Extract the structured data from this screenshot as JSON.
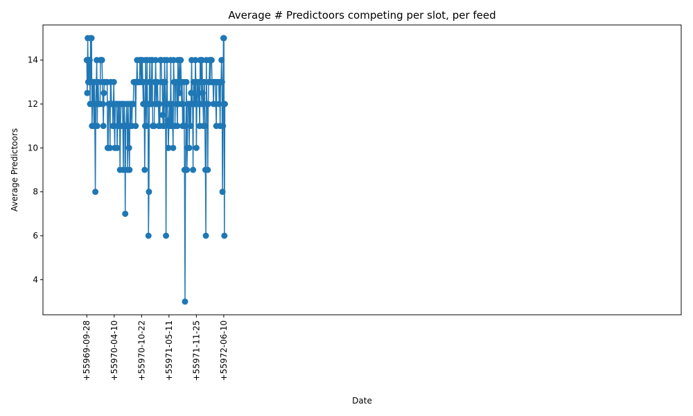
{
  "chart_data": {
    "type": "line",
    "title": "Average # Predictoors competing per slot, per feed",
    "xlabel": "Date",
    "ylabel": "Average Predictoors",
    "x_ticks": [
      "+55969-09-28",
      "+55970-04-10",
      "+55970-10-22",
      "+55971-05-11",
      "+55971-11-25",
      "+55972-06-10"
    ],
    "y_ticks": [
      4,
      6,
      8,
      10,
      12,
      14
    ],
    "xlim": [
      -1.6,
      21.7
    ],
    "ylim": [
      2.4,
      15.6
    ],
    "grid": false,
    "color": "#1f77b4",
    "series": [
      {
        "values": [
          14,
          12.5,
          15,
          13,
          13,
          14,
          14,
          12,
          15,
          13,
          15,
          11,
          12,
          13,
          13,
          11,
          13,
          11,
          8,
          12,
          13,
          14,
          11,
          13,
          13,
          12,
          12,
          12,
          12,
          14,
          14,
          14,
          14,
          13,
          12,
          11,
          12.5,
          13,
          13,
          13,
          13,
          13,
          13,
          13,
          10,
          10,
          12,
          12,
          12,
          10,
          13,
          13,
          12,
          12,
          12,
          11,
          12,
          13,
          11,
          10,
          12,
          12,
          12,
          12,
          10,
          11,
          12,
          11,
          12,
          12,
          9,
          11,
          12,
          12,
          12,
          12,
          11,
          9,
          12,
          12,
          11,
          7,
          11,
          11,
          12,
          11,
          9,
          12,
          11,
          10,
          9,
          12,
          11,
          12,
          12,
          11,
          12,
          12,
          12,
          13,
          13,
          13,
          13,
          11,
          13,
          13,
          14,
          13,
          13,
          13,
          13,
          13,
          14,
          14,
          13,
          14,
          13,
          14,
          13,
          12,
          13,
          12,
          9,
          11,
          14,
          12,
          11,
          14,
          12,
          12,
          6,
          8,
          13,
          14,
          12,
          13,
          12,
          14,
          14,
          11,
          11,
          11,
          11,
          13,
          12,
          14,
          13,
          12,
          13,
          13,
          12,
          12,
          11,
          12,
          11,
          14,
          14,
          14,
          13,
          13,
          11.5,
          11,
          13,
          11,
          14,
          13,
          12,
          6,
          12,
          14,
          12,
          11.25,
          10,
          11,
          12,
          12,
          11,
          14,
          11,
          11,
          12,
          11,
          10,
          14,
          13,
          13,
          11,
          13,
          13,
          13,
          12,
          11,
          14,
          12,
          13,
          14,
          12.5,
          13,
          14,
          13,
          12,
          13,
          11,
          12,
          11,
          13,
          9,
          3,
          9,
          11,
          13,
          9,
          10,
          12,
          12,
          12,
          10,
          12,
          12,
          11,
          12.5,
          14,
          12,
          12,
          9,
          13,
          13,
          12,
          12,
          14,
          13,
          10,
          12,
          13,
          13,
          12,
          13,
          12,
          11,
          14,
          13,
          14,
          12,
          14,
          12.5,
          12,
          11,
          13,
          13,
          11,
          9,
          6,
          14,
          12,
          12,
          9,
          12,
          13,
          13,
          14,
          13,
          14,
          14,
          14,
          13,
          13,
          13,
          12,
          13,
          13,
          13,
          13,
          12,
          11,
          13,
          13,
          13,
          13,
          13,
          12,
          13,
          11,
          13,
          13,
          14,
          13,
          8,
          11,
          15,
          15,
          6,
          12
        ]
      }
    ]
  }
}
